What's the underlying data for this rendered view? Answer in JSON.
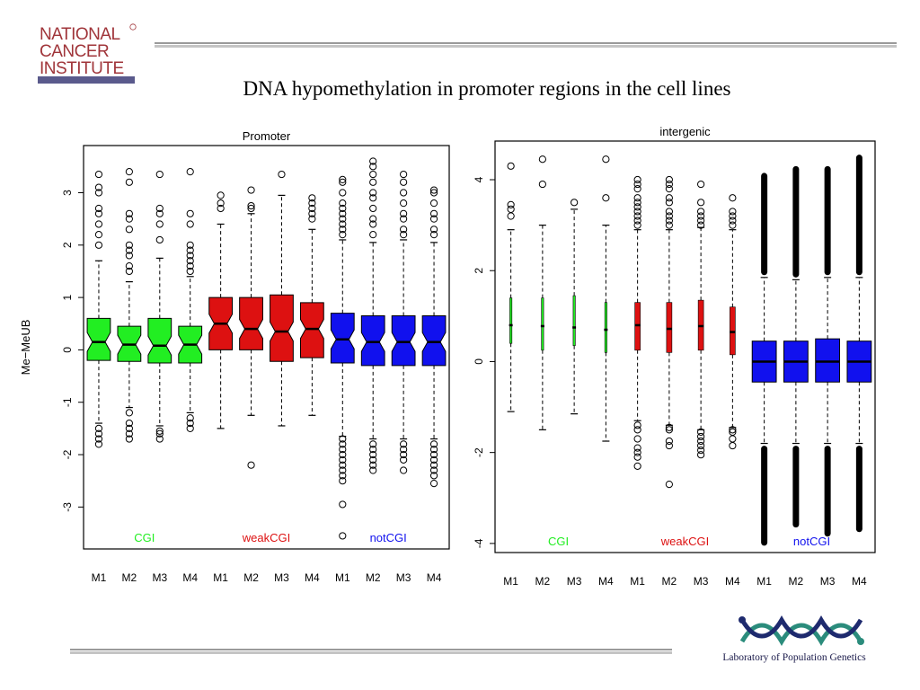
{
  "slide": {
    "title": "DNA hypomethylation in promoter regions in the cell lines",
    "nci_logo_text": [
      "NATIONAL",
      "CANCER",
      "INSTITUTE"
    ],
    "lab_logo_text": "Laboratory of Population Genetics"
  },
  "chart_data": [
    {
      "type": "box",
      "title": "Promoter",
      "ylabel": "Me−MeUB",
      "xlabel": "",
      "ylim": [
        -3.8,
        3.9
      ],
      "yticks": [
        -3,
        -2,
        -1,
        0,
        1,
        2,
        3
      ],
      "notched": true,
      "categories": [
        "M1",
        "M2",
        "M3",
        "M4",
        "M1",
        "M2",
        "M3",
        "M4",
        "M1",
        "M2",
        "M3",
        "M4"
      ],
      "groups": [
        {
          "name": "CGI",
          "color": "#22ee22",
          "members": [
            0,
            1,
            2,
            3
          ]
        },
        {
          "name": "weakCGI",
          "color": "#dd1111",
          "members": [
            4,
            5,
            6,
            7
          ]
        },
        {
          "name": "notCGI",
          "color": "#1111ee",
          "members": [
            8,
            9,
            10,
            11
          ]
        }
      ],
      "boxes": [
        {
          "q1": -0.2,
          "median": 0.15,
          "q3": 0.6,
          "whisker_low": -1.4,
          "whisker_high": 1.7,
          "outliers_high": [
            2.0,
            2.2,
            2.4,
            2.6,
            2.7,
            3.0,
            3.1,
            3.35
          ],
          "outliers_low": [
            -1.5,
            -1.6,
            -1.7,
            -1.8
          ]
        },
        {
          "q1": -0.22,
          "median": 0.1,
          "q3": 0.45,
          "whisker_low": -1.1,
          "whisker_high": 1.3,
          "outliers_high": [
            1.5,
            1.6,
            1.8,
            1.9,
            2.0,
            2.3,
            2.5,
            2.6,
            3.2,
            3.4
          ],
          "outliers_low": [
            -1.2,
            -1.4,
            -1.5,
            -1.6,
            -1.7
          ]
        },
        {
          "q1": -0.25,
          "median": 0.08,
          "q3": 0.6,
          "whisker_low": -1.45,
          "whisker_high": 1.75,
          "outliers_high": [
            2.1,
            2.4,
            2.6,
            2.7,
            3.35
          ],
          "outliers_low": [
            -1.55,
            -1.6,
            -1.7
          ]
        },
        {
          "q1": -0.25,
          "median": 0.1,
          "q3": 0.45,
          "whisker_low": -1.2,
          "whisker_high": 1.4,
          "outliers_high": [
            1.5,
            1.6,
            1.7,
            1.8,
            1.9,
            2.0,
            2.4,
            2.6,
            3.4
          ],
          "outliers_low": [
            -1.3,
            -1.4,
            -1.5
          ]
        },
        {
          "q1": 0.0,
          "median": 0.5,
          "q3": 1.0,
          "whisker_low": -1.5,
          "whisker_high": 2.4,
          "outliers_high": [
            2.7,
            2.8,
            2.95
          ],
          "outliers_low": []
        },
        {
          "q1": 0.0,
          "median": 0.4,
          "q3": 1.0,
          "whisker_low": -1.25,
          "whisker_high": 2.6,
          "outliers_high": [
            2.7,
            2.75,
            3.05
          ],
          "outliers_low": [
            -2.2
          ]
        },
        {
          "q1": -0.22,
          "median": 0.35,
          "q3": 1.05,
          "whisker_low": -1.45,
          "whisker_high": 2.95,
          "outliers_high": [
            3.35
          ],
          "outliers_low": []
        },
        {
          "q1": -0.15,
          "median": 0.4,
          "q3": 0.9,
          "whisker_low": -1.25,
          "whisker_high": 2.3,
          "outliers_high": [
            2.5,
            2.6,
            2.7,
            2.8,
            2.9
          ],
          "outliers_low": []
        },
        {
          "q1": -0.25,
          "median": 0.2,
          "q3": 0.7,
          "whisker_low": -1.65,
          "whisker_high": 2.1,
          "outliers_high": [
            2.2,
            2.3,
            2.4,
            2.5,
            2.6,
            2.7,
            2.8,
            3.0,
            3.2,
            3.25
          ],
          "outliers_low": [
            -1.7,
            -1.8,
            -1.9,
            -2.0,
            -2.1,
            -2.2,
            -2.3,
            -2.4,
            -2.5,
            -2.95,
            -3.55
          ]
        },
        {
          "q1": -0.3,
          "median": 0.15,
          "q3": 0.65,
          "whisker_low": -1.7,
          "whisker_high": 2.05,
          "outliers_high": [
            2.2,
            2.4,
            2.5,
            2.7,
            2.9,
            3.0,
            3.2,
            3.35,
            3.5,
            3.6
          ],
          "outliers_low": [
            -1.8,
            -1.9,
            -2.0,
            -2.1,
            -2.2,
            -2.3
          ]
        },
        {
          "q1": -0.3,
          "median": 0.15,
          "q3": 0.65,
          "whisker_low": -1.7,
          "whisker_high": 2.1,
          "outliers_high": [
            2.2,
            2.3,
            2.5,
            2.6,
            2.8,
            3.0,
            3.2,
            3.35
          ],
          "outliers_low": [
            -1.8,
            -1.9,
            -2.0,
            -2.1,
            -2.3
          ]
        },
        {
          "q1": -0.3,
          "median": 0.15,
          "q3": 0.65,
          "whisker_low": -1.7,
          "whisker_high": 2.05,
          "outliers_high": [
            2.2,
            2.3,
            2.5,
            2.6,
            2.8,
            3.0,
            3.05
          ],
          "outliers_low": [
            -1.8,
            -1.9,
            -2.0,
            -2.1,
            -2.2,
            -2.3,
            -2.4,
            -2.55
          ]
        }
      ]
    },
    {
      "type": "box",
      "title": "intergenic",
      "ylabel": "",
      "xlabel": "",
      "ylim": [
        -4.2,
        4.85
      ],
      "yticks": [
        -4,
        -2,
        0,
        2,
        4
      ],
      "notched": false,
      "categories": [
        "M1",
        "M2",
        "M3",
        "M4",
        "M1",
        "M2",
        "M3",
        "M4",
        "M1",
        "M2",
        "M3",
        "M4"
      ],
      "groups": [
        {
          "name": "CGI",
          "color": "#22ee22",
          "members": [
            0,
            1,
            2,
            3
          ]
        },
        {
          "name": "weakCGI",
          "color": "#dd1111",
          "members": [
            4,
            5,
            6,
            7
          ]
        },
        {
          "name": "notCGI",
          "color": "#1111ee",
          "members": [
            8,
            9,
            10,
            11
          ]
        }
      ],
      "boxes": [
        {
          "q1": 0.4,
          "median": 0.8,
          "q3": 1.4,
          "whisker_low": -1.1,
          "whisker_high": 2.9,
          "outliers_high": [
            3.2,
            3.35,
            3.45,
            4.3
          ],
          "outliers_low": []
        },
        {
          "q1": 0.25,
          "median": 0.78,
          "q3": 1.4,
          "whisker_low": -1.5,
          "whisker_high": 3.0,
          "outliers_high": [
            3.9,
            4.45
          ],
          "outliers_low": []
        },
        {
          "q1": 0.35,
          "median": 0.75,
          "q3": 1.45,
          "whisker_low": -1.15,
          "whisker_high": 3.35,
          "outliers_high": [
            3.5
          ],
          "outliers_low": []
        },
        {
          "q1": 0.2,
          "median": 0.7,
          "q3": 1.3,
          "whisker_low": -1.75,
          "whisker_high": 3.0,
          "outliers_high": [
            3.6,
            4.45
          ],
          "outliers_low": []
        },
        {
          "q1": 0.25,
          "median": 0.8,
          "q3": 1.3,
          "whisker_low": -1.3,
          "whisker_high": 2.9,
          "outliers_high": [
            3.0,
            3.1,
            3.2,
            3.3,
            3.4,
            3.5,
            3.6,
            3.8,
            3.9,
            4.0
          ],
          "outliers_low": [
            -1.4,
            -1.5,
            -1.7,
            -1.9,
            -2.0,
            -2.1,
            -2.3
          ]
        },
        {
          "q1": 0.2,
          "median": 0.72,
          "q3": 1.3,
          "whisker_low": -1.4,
          "whisker_high": 2.9,
          "outliers_high": [
            3.0,
            3.1,
            3.2,
            3.3,
            3.5,
            3.6,
            3.8,
            3.9,
            4.0
          ],
          "outliers_low": [
            -1.45,
            -1.5,
            -1.75,
            -1.85,
            -2.7
          ]
        },
        {
          "q1": 0.25,
          "median": 0.78,
          "q3": 1.35,
          "whisker_low": -1.5,
          "whisker_high": 2.95,
          "outliers_high": [
            3.0,
            3.1,
            3.2,
            3.3,
            3.5,
            3.9
          ],
          "outliers_low": [
            -1.55,
            -1.65,
            -1.75,
            -1.85,
            -1.95,
            -2.05
          ]
        },
        {
          "q1": 0.15,
          "median": 0.65,
          "q3": 1.2,
          "whisker_low": -1.45,
          "whisker_high": 2.9,
          "outliers_high": [
            3.0,
            3.1,
            3.2,
            3.3,
            3.6
          ],
          "outliers_low": [
            -1.5,
            -1.55,
            -1.7,
            -1.85
          ]
        },
        {
          "q1": -0.45,
          "median": 0.0,
          "q3": 0.45,
          "whisker_low": -1.8,
          "whisker_high": 1.85,
          "dense_outliers_high": [
            1.9,
            4.15
          ],
          "dense_outliers_low": [
            -4.05,
            -1.85
          ],
          "outliers_high": [],
          "outliers_low": []
        },
        {
          "q1": -0.45,
          "median": 0.0,
          "q3": 0.45,
          "whisker_low": -1.8,
          "whisker_high": 1.8,
          "dense_outliers_high": [
            1.85,
            4.3
          ],
          "dense_outliers_low": [
            -3.65,
            -1.85
          ],
          "outliers_high": [],
          "outliers_low": []
        },
        {
          "q1": -0.45,
          "median": 0.0,
          "q3": 0.5,
          "whisker_low": -1.8,
          "whisker_high": 1.85,
          "dense_outliers_high": [
            1.9,
            4.3
          ],
          "dense_outliers_low": [
            -3.85,
            -1.85
          ],
          "outliers_high": [],
          "outliers_low": []
        },
        {
          "q1": -0.45,
          "median": 0.0,
          "q3": 0.45,
          "whisker_low": -1.8,
          "whisker_high": 1.85,
          "dense_outliers_high": [
            1.9,
            4.55
          ],
          "dense_outliers_low": [
            -3.75,
            -1.85
          ],
          "outliers_high": [],
          "outliers_low": []
        }
      ]
    }
  ]
}
